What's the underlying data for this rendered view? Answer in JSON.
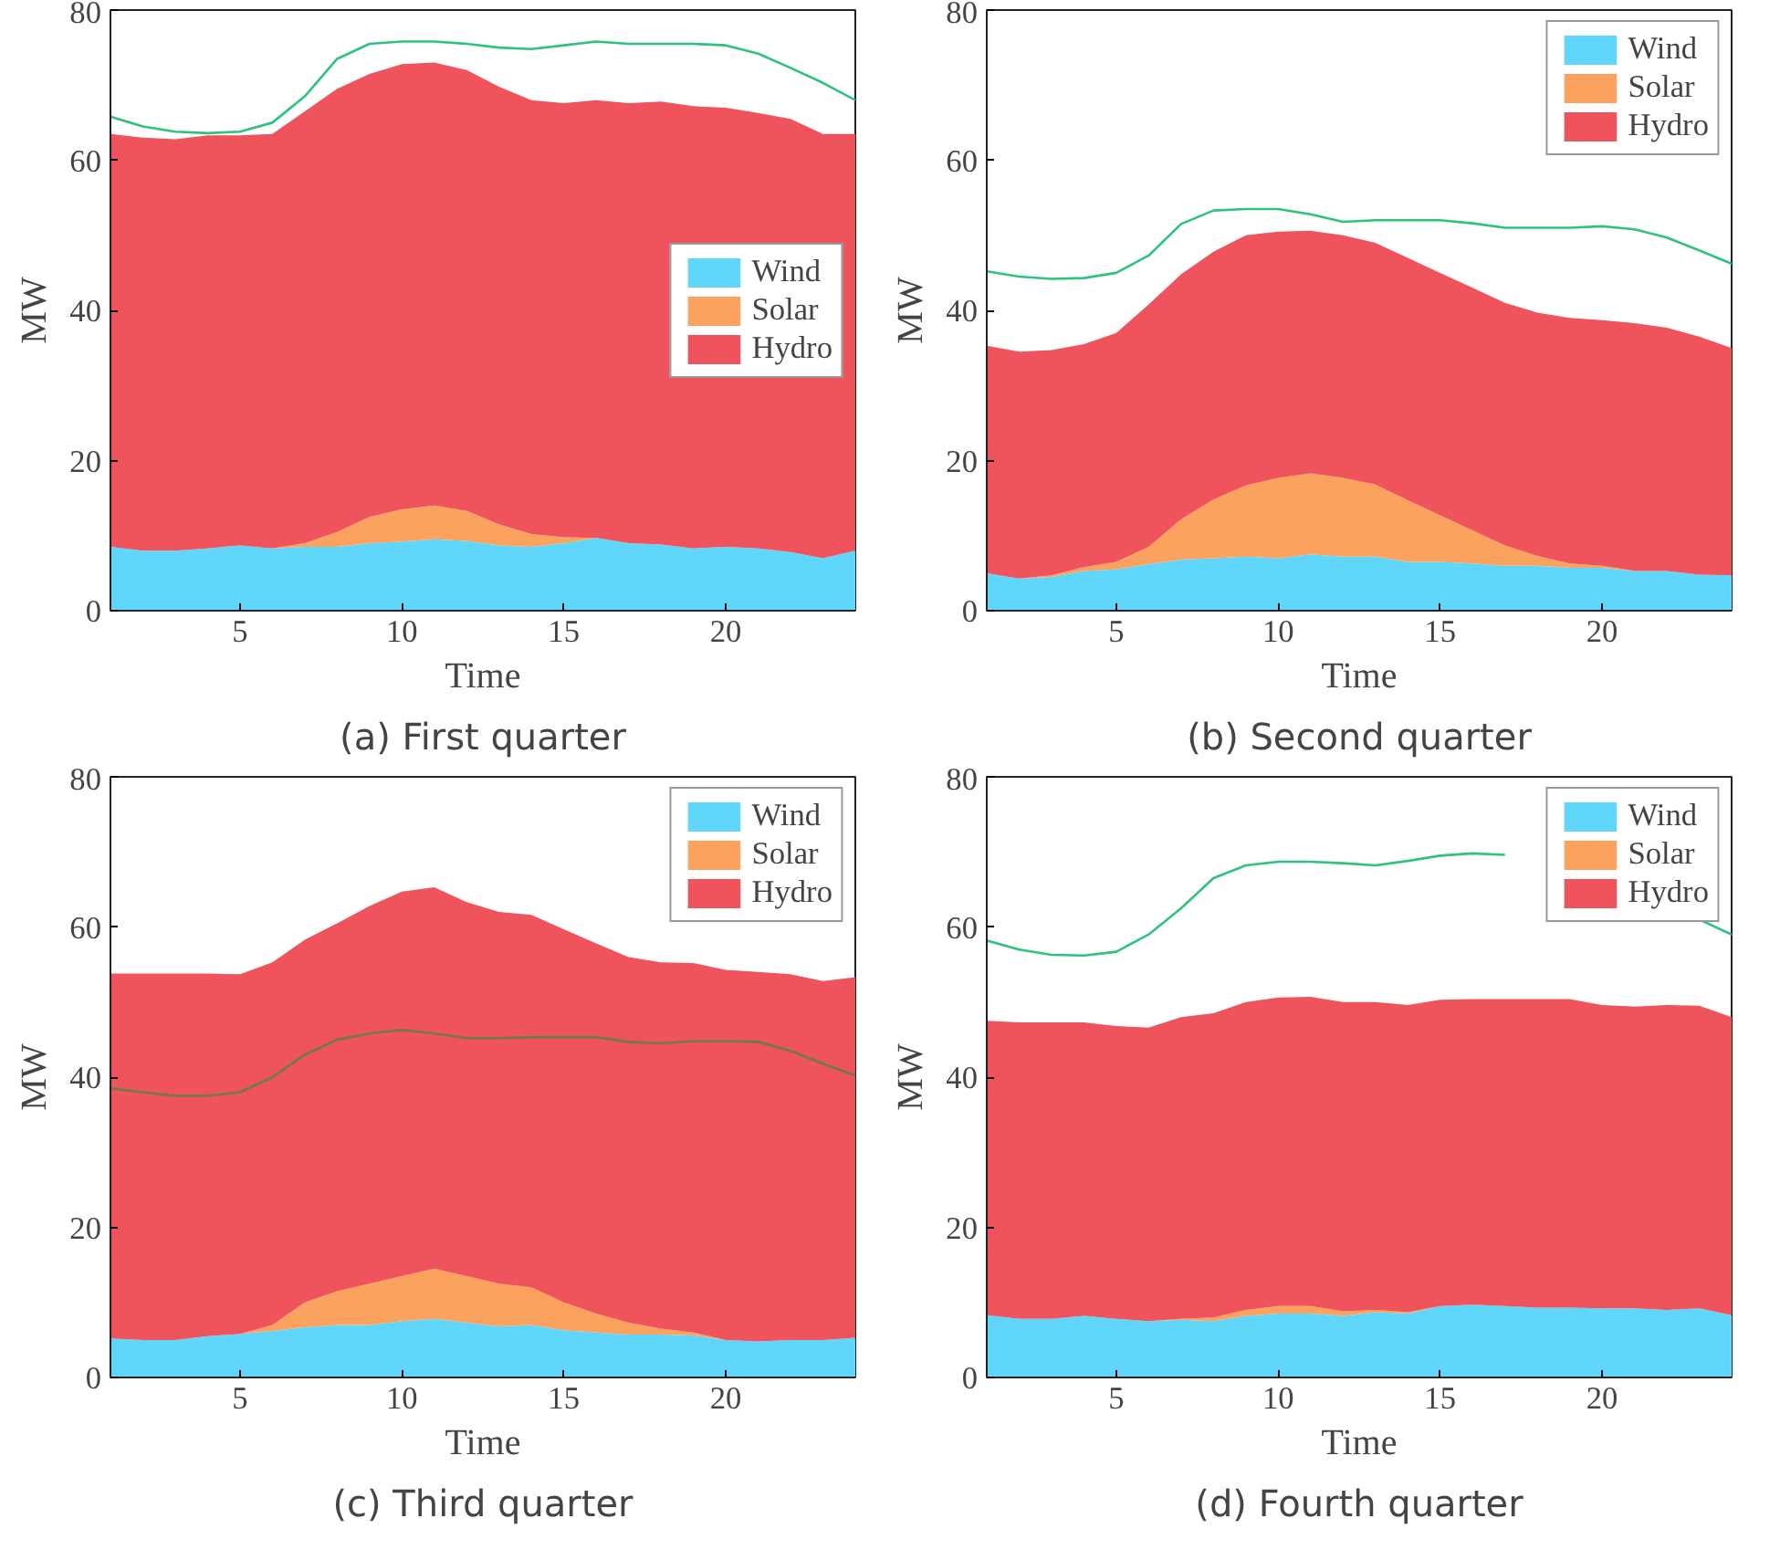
{
  "chart_data": [
    {
      "type": "area",
      "title": "(a) First quarter",
      "xlabel": "Time",
      "ylabel": "MW",
      "stacked": true,
      "legend": "right",
      "grid": false,
      "xlim": [
        1,
        24
      ],
      "ylim": [
        0,
        80
      ],
      "xticks": [
        5,
        10,
        15,
        20
      ],
      "yticks": [
        0,
        20,
        40,
        60,
        80
      ],
      "x": [
        1,
        2,
        3,
        4,
        5,
        6,
        7,
        8,
        9,
        10,
        11,
        12,
        13,
        14,
        15,
        16,
        17,
        18,
        19,
        20,
        21,
        22,
        23,
        24
      ],
      "series": [
        {
          "name": "Wind",
          "color": "#61d6fb",
          "values": [
            8.5,
            8,
            8,
            8.3,
            8.7,
            8.3,
            8.5,
            8.5,
            9,
            9.2,
            9.5,
            9.3,
            8.7,
            8.5,
            9,
            9.7,
            9,
            8.8,
            8.3,
            8.5,
            8.3,
            7.8,
            7,
            8
          ]
        },
        {
          "name": "Solar",
          "color": "#fba35e",
          "values": [
            0,
            0,
            0,
            0,
            0,
            0,
            0.5,
            2,
            3.5,
            4.3,
            4.5,
            4,
            2.8,
            1.7,
            0.8,
            0,
            0,
            0,
            0,
            0,
            0,
            0,
            0,
            0
          ]
        },
        {
          "name": "Hydro",
          "color": "#ef535c",
          "values": [
            55,
            55,
            54.8,
            55,
            54.6,
            55.2,
            57.5,
            59,
            59,
            59.3,
            59,
            58.7,
            58.3,
            57.8,
            57.8,
            58.3,
            58.6,
            59,
            58.9,
            58.5,
            58,
            57.7,
            56.5,
            55.5
          ]
        },
        {
          "type": "line",
          "color": "#2ec27e",
          "values": [
            65.8,
            64.5,
            63.8,
            63.6,
            63.8,
            65,
            68.5,
            73.5,
            75.5,
            75.8,
            75.8,
            75.5,
            75,
            74.8,
            75.3,
            75.8,
            75.5,
            75.5,
            75.5,
            75.3,
            74.2,
            72.3,
            70.3,
            68
          ]
        }
      ]
    },
    {
      "type": "area",
      "title": "(b) Second quarter",
      "xlabel": "Time",
      "ylabel": "MW",
      "stacked": true,
      "legend": "top right",
      "grid": false,
      "xlim": [
        1,
        24
      ],
      "ylim": [
        0,
        80
      ],
      "xticks": [
        5,
        10,
        15,
        20
      ],
      "yticks": [
        0,
        20,
        40,
        60,
        80
      ],
      "x": [
        1,
        2,
        3,
        4,
        5,
        6,
        7,
        8,
        9,
        10,
        11,
        12,
        13,
        14,
        15,
        16,
        17,
        18,
        19,
        20,
        21,
        22,
        23,
        24
      ],
      "series": [
        {
          "name": "Wind",
          "color": "#61d6fb",
          "values": [
            5,
            4.3,
            4.5,
            5.3,
            5.5,
            6.2,
            6.8,
            7,
            7.2,
            7,
            7.5,
            7.2,
            7.2,
            6.5,
            6.5,
            6.3,
            6,
            6,
            5.7,
            5.7,
            5.3,
            5.3,
            4.8,
            4.7
          ]
        },
        {
          "name": "Solar",
          "color": "#fba35e",
          "values": [
            0,
            0,
            0.2,
            0.5,
            1,
            2.3,
            5.4,
            7.8,
            9.5,
            10.7,
            10.8,
            10.5,
            9.6,
            8.2,
            6.2,
            4.4,
            2.7,
            1.3,
            0.6,
            0.3,
            0,
            0,
            0,
            0
          ]
        },
        {
          "name": "Hydro",
          "color": "#ef535c",
          "values": [
            30.3,
            30.2,
            30,
            29.7,
            30.5,
            32.3,
            32.6,
            33,
            33.3,
            32.8,
            32.3,
            32.3,
            32.2,
            32.3,
            32.3,
            32.3,
            32.3,
            32.4,
            32.7,
            32.7,
            33,
            32.4,
            31.7,
            30.3
          ]
        },
        {
          "type": "line",
          "color": "#2ec27e",
          "values": [
            45.2,
            44.5,
            44.2,
            44.3,
            45,
            47.3,
            51.5,
            53.3,
            53.5,
            53.5,
            52.8,
            51.8,
            52,
            52,
            52,
            51.6,
            51,
            51,
            51,
            51.2,
            50.8,
            49.7,
            48,
            46.2
          ]
        }
      ]
    },
    {
      "type": "area",
      "title": "(c) Third quarter",
      "xlabel": "Time",
      "ylabel": "MW",
      "stacked": true,
      "legend": "top right",
      "grid": false,
      "xlim": [
        1,
        24
      ],
      "ylim": [
        0,
        80
      ],
      "xticks": [
        5,
        10,
        15,
        20
      ],
      "yticks": [
        0,
        20,
        40,
        60,
        80
      ],
      "x": [
        1,
        2,
        3,
        4,
        5,
        6,
        7,
        8,
        9,
        10,
        11,
        12,
        13,
        14,
        15,
        16,
        17,
        18,
        19,
        20,
        21,
        22,
        23,
        24
      ],
      "series": [
        {
          "name": "Wind",
          "color": "#61d6fb",
          "values": [
            5.2,
            5,
            5,
            5.5,
            5.8,
            6.2,
            6.7,
            7,
            7,
            7.5,
            7.8,
            7.3,
            6.8,
            7,
            6.3,
            6,
            5.7,
            5.7,
            5.6,
            5,
            4.8,
            5,
            5,
            5.3
          ]
        },
        {
          "name": "Solar",
          "color": "#fba35e",
          "values": [
            0,
            0,
            0,
            0,
            0,
            0.8,
            3.3,
            4.5,
            5.5,
            6,
            6.7,
            6.2,
            5.7,
            5,
            3.7,
            2.5,
            1.6,
            0.8,
            0.4,
            0,
            0,
            0,
            0,
            0
          ]
        },
        {
          "name": "Hydro",
          "color": "#ef535c",
          "values": [
            48.6,
            48.8,
            48.8,
            48.3,
            47.9,
            48.3,
            48.3,
            49,
            50.3,
            51.2,
            50.8,
            49.8,
            49.5,
            49.6,
            49.7,
            49.3,
            48.7,
            48.8,
            49.2,
            49.3,
            49.2,
            48.7,
            47.8,
            48
          ]
        },
        {
          "type": "line",
          "color": "#6e7a4c",
          "values": [
            38.5,
            38,
            37.5,
            37.5,
            38,
            40,
            43,
            45,
            45.8,
            46.3,
            45.8,
            45.2,
            45.2,
            45.3,
            45.3,
            45.3,
            44.7,
            44.5,
            44.8,
            44.8,
            44.7,
            43.5,
            41.8,
            40.2
          ]
        }
      ]
    },
    {
      "type": "area",
      "title": "(d) Fourth quarter",
      "xlabel": "Time",
      "ylabel": "MW",
      "stacked": true,
      "legend": "top right",
      "grid": false,
      "xlim": [
        1,
        24
      ],
      "ylim": [
        0,
        80
      ],
      "xticks": [
        5,
        10,
        15,
        20
      ],
      "yticks": [
        0,
        20,
        40,
        60,
        80
      ],
      "x": [
        1,
        2,
        3,
        4,
        5,
        6,
        7,
        8,
        9,
        10,
        11,
        12,
        13,
        14,
        15,
        16,
        17,
        18,
        19,
        20,
        21,
        22,
        23,
        24
      ],
      "series": [
        {
          "name": "Wind",
          "color": "#61d6fb",
          "values": [
            8.3,
            7.8,
            7.8,
            8.2,
            7.8,
            7.5,
            7.7,
            7.5,
            8.2,
            8.5,
            8.5,
            8.2,
            8.7,
            8.5,
            9.5,
            9.7,
            9.5,
            9.3,
            9.3,
            9.2,
            9.2,
            9,
            9.2,
            8.3
          ]
        },
        {
          "name": "Solar",
          "color": "#fba35e",
          "values": [
            0,
            0,
            0,
            0,
            0,
            0,
            0.1,
            0.5,
            0.8,
            1,
            1,
            0.6,
            0.3,
            0.2,
            0,
            0,
            0,
            0,
            0,
            0,
            0,
            0,
            0,
            0
          ]
        },
        {
          "name": "Hydro",
          "color": "#ef535c",
          "values": [
            39.2,
            39.5,
            39.5,
            39.1,
            39,
            39.1,
            40.2,
            40.5,
            41,
            41.1,
            41.2,
            41.2,
            41,
            40.9,
            40.8,
            40.7,
            40.9,
            41.1,
            41.1,
            40.4,
            40.2,
            40.6,
            40.3,
            39.7
          ]
        },
        {
          "type": "line",
          "color": "#2ec27e",
          "values": [
            58.2,
            57,
            56.3,
            56.2,
            56.7,
            59,
            62.5,
            66.5,
            68.2,
            68.7,
            68.7,
            68.5,
            68.2,
            68.8,
            69.5,
            69.8,
            69.6,
            null,
            null,
            null,
            null,
            null,
            61,
            59
          ]
        }
      ]
    }
  ]
}
